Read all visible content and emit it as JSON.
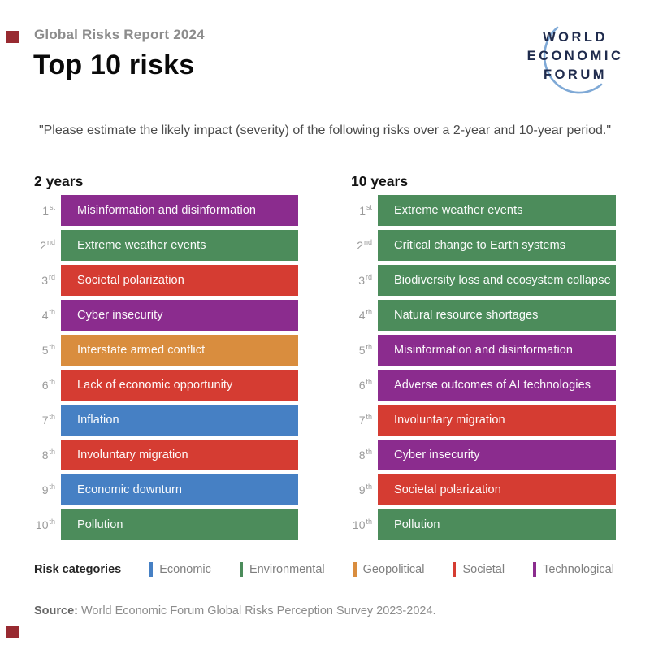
{
  "page": {
    "report_label": "Global Risks Report 2024",
    "title": "Top 10 risks",
    "question": "\"Please estimate the likely impact (severity) of the following risks over a 2-year and 10-year period.\"",
    "corner_marker_color": "#982A31"
  },
  "logo": {
    "lines": [
      "WORLD",
      "ECONOMIC",
      "FORUM"
    ],
    "text_color": "#1F2B4D",
    "arc_color": "#7FA9D6"
  },
  "category_colors": {
    "economic": "#4680C4",
    "environmental": "#4C8C5B",
    "geopolitical": "#D98D3E",
    "societal": "#D53C32",
    "technological": "#8B2C8E"
  },
  "chart_data": {
    "type": "table",
    "title": "Top 10 risks",
    "columns": [
      {
        "header": "2 years",
        "rows": [
          {
            "rank": "1",
            "ordinal": "st",
            "label": "Misinformation and disinformation",
            "category": "technological"
          },
          {
            "rank": "2",
            "ordinal": "nd",
            "label": "Extreme weather events",
            "category": "environmental"
          },
          {
            "rank": "3",
            "ordinal": "rd",
            "label": "Societal polarization",
            "category": "societal"
          },
          {
            "rank": "4",
            "ordinal": "th",
            "label": "Cyber insecurity",
            "category": "technological"
          },
          {
            "rank": "5",
            "ordinal": "th",
            "label": "Interstate armed conflict",
            "category": "geopolitical"
          },
          {
            "rank": "6",
            "ordinal": "th",
            "label": "Lack of economic opportunity",
            "category": "societal"
          },
          {
            "rank": "7",
            "ordinal": "th",
            "label": "Inflation",
            "category": "economic"
          },
          {
            "rank": "8",
            "ordinal": "th",
            "label": "Involuntary migration",
            "category": "societal"
          },
          {
            "rank": "9",
            "ordinal": "th",
            "label": "Economic downturn",
            "category": "economic"
          },
          {
            "rank": "10",
            "ordinal": "th",
            "label": "Pollution",
            "category": "environmental"
          }
        ]
      },
      {
        "header": "10 years",
        "rows": [
          {
            "rank": "1",
            "ordinal": "st",
            "label": "Extreme weather events",
            "category": "environmental"
          },
          {
            "rank": "2",
            "ordinal": "nd",
            "label": "Critical change to Earth systems",
            "category": "environmental"
          },
          {
            "rank": "3",
            "ordinal": "rd",
            "label": "Biodiversity loss and ecosystem collapse",
            "category": "environmental"
          },
          {
            "rank": "4",
            "ordinal": "th",
            "label": "Natural resource shortages",
            "category": "environmental"
          },
          {
            "rank": "5",
            "ordinal": "th",
            "label": "Misinformation and disinformation",
            "category": "technological"
          },
          {
            "rank": "6",
            "ordinal": "th",
            "label": "Adverse outcomes of AI technologies",
            "category": "technological"
          },
          {
            "rank": "7",
            "ordinal": "th",
            "label": "Involuntary migration",
            "category": "societal"
          },
          {
            "rank": "8",
            "ordinal": "th",
            "label": "Cyber insecurity",
            "category": "technological"
          },
          {
            "rank": "9",
            "ordinal": "th",
            "label": "Societal polarization",
            "category": "societal"
          },
          {
            "rank": "10",
            "ordinal": "th",
            "label": "Pollution",
            "category": "environmental"
          }
        ]
      }
    ]
  },
  "legend": {
    "title": "Risk categories",
    "items": [
      {
        "label": "Economic",
        "category": "economic"
      },
      {
        "label": "Environmental",
        "category": "environmental"
      },
      {
        "label": "Geopolitical",
        "category": "geopolitical"
      },
      {
        "label": "Societal",
        "category": "societal"
      },
      {
        "label": "Technological",
        "category": "technological"
      }
    ]
  },
  "source": {
    "prefix": "Source:",
    "text": "World Economic Forum Global Risks Perception Survey 2023-2024."
  }
}
